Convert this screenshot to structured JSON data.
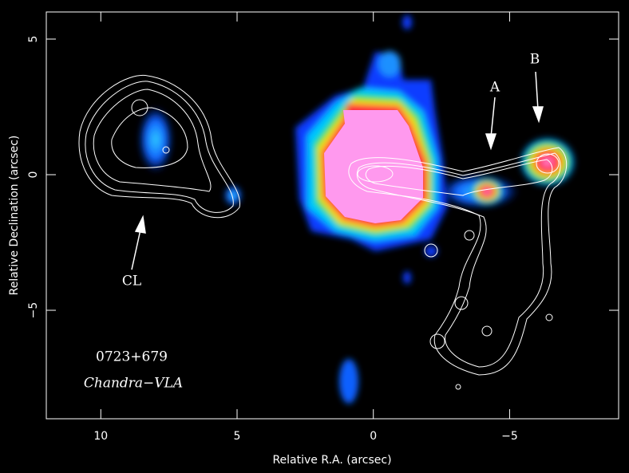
{
  "chart_data": {
    "type": "image",
    "xlabel": "Relative R.A. (arcsec)",
    "ylabel": "Relative Declination (arcsec)",
    "xlim": [
      12,
      -9
    ],
    "ylim": [
      -9,
      6
    ],
    "xticks": [
      10,
      5,
      0,
      {
        "value": -5,
        "label": "−5"
      }
    ],
    "yticks": [
      5,
      0,
      {
        "value": -5,
        "label": "−5"
      }
    ],
    "annotations": [
      "A",
      "B",
      "CL",
      "0723+679",
      "Chandra−VLA"
    ]
  }
}
